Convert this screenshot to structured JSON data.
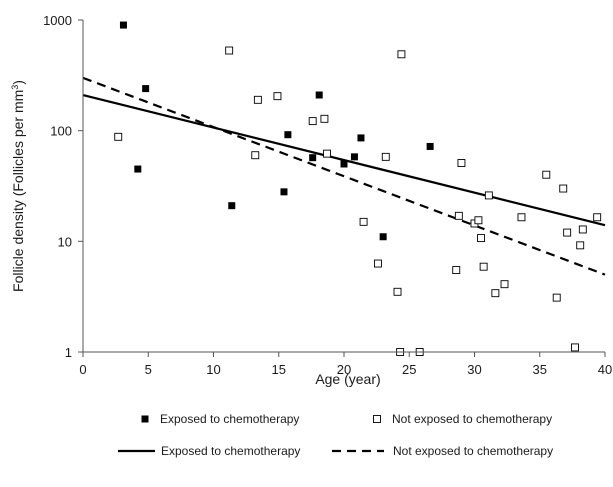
{
  "chart_data": {
    "type": "scatter",
    "title": "",
    "xlabel": "Age (year)",
    "ylabel_main": "Follicle density (Follicles per mm",
    "ylabel_sup": "3",
    "ylabel_close": ")",
    "xlim": [
      0,
      40
    ],
    "ylim": [
      1,
      1000
    ],
    "y_scale": "log",
    "x_ticks": [
      0,
      5,
      10,
      15,
      20,
      25,
      30,
      35,
      40
    ],
    "y_ticks": [
      1,
      10,
      100,
      1000
    ],
    "grid": false,
    "legend_placement": "bottom",
    "series": [
      {
        "name": "Exposed to chemotherapy",
        "kind": "points",
        "marker": "filled-square",
        "color": "#000000",
        "points": [
          [
            3.1,
            900
          ],
          [
            4.2,
            45
          ],
          [
            4.8,
            240
          ],
          [
            11.4,
            21
          ],
          [
            15.4,
            28
          ],
          [
            15.7,
            92
          ],
          [
            17.6,
            57
          ],
          [
            18.1,
            210
          ],
          [
            20.0,
            50
          ],
          [
            20.8,
            58
          ],
          [
            21.3,
            86
          ],
          [
            23.0,
            11
          ],
          [
            26.6,
            72
          ]
        ]
      },
      {
        "name": "Not exposed to chemotherapy",
        "kind": "points",
        "marker": "open-square",
        "color": "#000000",
        "points": [
          [
            2.7,
            88
          ],
          [
            11.2,
            530
          ],
          [
            13.2,
            60
          ],
          [
            13.4,
            190
          ],
          [
            14.9,
            205
          ],
          [
            17.6,
            122
          ],
          [
            18.5,
            128
          ],
          [
            18.7,
            62
          ],
          [
            21.5,
            15
          ],
          [
            22.6,
            6.3
          ],
          [
            23.2,
            58
          ],
          [
            24.1,
            3.5
          ],
          [
            24.3,
            1.0
          ],
          [
            24.4,
            490
          ],
          [
            25.8,
            1.0
          ],
          [
            28.6,
            5.5
          ],
          [
            28.8,
            17
          ],
          [
            29.0,
            51
          ],
          [
            30.0,
            14.5
          ],
          [
            30.3,
            15.5
          ],
          [
            30.5,
            10.7
          ],
          [
            30.7,
            5.9
          ],
          [
            31.1,
            26
          ],
          [
            31.6,
            3.4
          ],
          [
            32.3,
            4.1
          ],
          [
            33.6,
            16.5
          ],
          [
            35.5,
            40
          ],
          [
            36.3,
            3.1
          ],
          [
            36.8,
            30
          ],
          [
            37.1,
            12
          ],
          [
            37.7,
            1.1
          ],
          [
            38.1,
            9.2
          ],
          [
            38.3,
            12.8
          ],
          [
            39.4,
            16.5
          ]
        ]
      },
      {
        "name": "Exposed to chemotherapy",
        "kind": "line",
        "dash": "solid",
        "color": "#000000",
        "points": [
          [
            0,
            210
          ],
          [
            40,
            14
          ]
        ]
      },
      {
        "name": "Not exposed to chemotherapy",
        "kind": "line",
        "dash": "dashed",
        "color": "#000000",
        "points": [
          [
            0,
            300
          ],
          [
            40,
            5
          ]
        ]
      }
    ]
  }
}
